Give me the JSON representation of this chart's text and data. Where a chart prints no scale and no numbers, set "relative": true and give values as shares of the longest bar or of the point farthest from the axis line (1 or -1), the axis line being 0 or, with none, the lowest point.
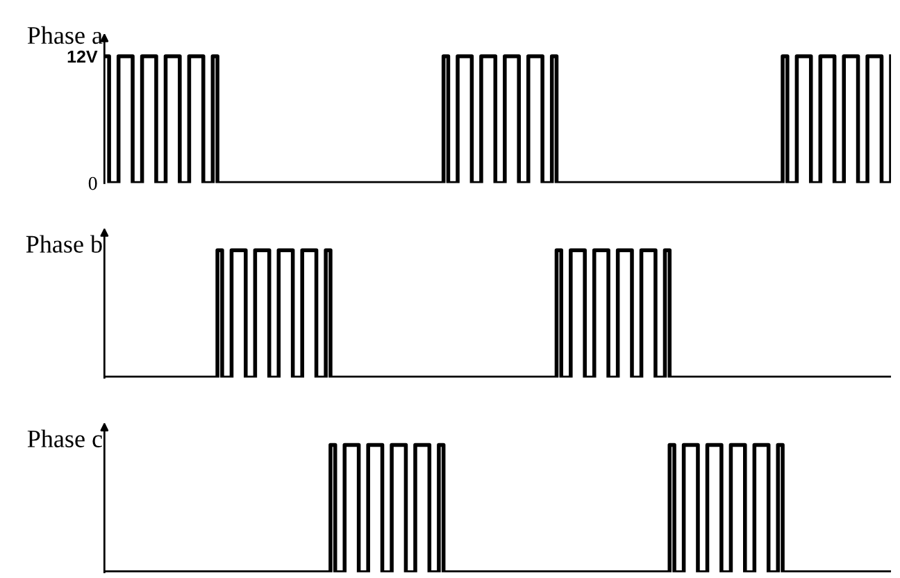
{
  "chart_data": [
    {
      "type": "step",
      "ylabel": "Phase a",
      "ylim": [
        0,
        13.5
      ],
      "yticks": [
        0,
        {
          "value": 12,
          "label": "12V"
        }
      ],
      "tick_labels": "y",
      "categories": [
        null,
        null,
        null,
        null,
        null,
        null,
        null,
        null,
        null,
        null,
        null,
        null,
        null,
        null,
        null,
        null,
        null,
        null,
        null,
        null,
        null,
        null,
        null,
        null,
        null,
        null,
        null,
        null,
        null,
        null,
        null,
        null,
        null,
        null,
        null,
        null,
        null,
        null,
        null,
        null,
        null,
        null,
        null,
        null,
        null,
        null,
        null,
        null,
        null,
        null,
        null,
        null,
        null,
        null,
        null,
        null,
        null,
        null,
        null,
        null,
        null,
        null,
        null,
        null,
        null,
        null,
        null,
        null,
        null,
        null,
        null,
        null,
        null,
        null,
        null,
        null,
        null,
        null,
        null,
        null,
        null,
        null,
        null,
        null,
        null,
        null,
        null,
        null,
        null,
        null,
        null,
        null,
        null,
        null,
        null,
        null,
        null,
        null,
        null,
        null,
        null,
        null,
        null,
        null,
        null,
        null,
        null,
        null,
        null,
        null,
        null,
        null,
        null,
        null,
        null,
        null,
        null,
        null,
        null,
        null,
        null,
        null,
        null,
        null,
        null,
        null,
        null,
        null,
        null,
        null,
        null,
        null,
        null,
        null,
        null,
        null,
        null,
        null,
        null,
        null,
        null,
        null,
        null,
        null,
        null,
        null,
        null,
        null,
        null,
        null,
        null,
        null,
        null,
        null,
        null,
        null,
        null,
        null,
        null,
        null,
        null,
        null,
        null,
        null,
        null,
        null,
        null,
        null
      ],
      "series": [
        {
          "color": "#000000",
          "values": [
            12,
            0,
            0,
            12,
            12,
            12,
            0,
            0,
            12,
            12,
            12,
            0,
            0,
            12,
            12,
            12,
            0,
            0,
            12,
            12,
            12,
            0,
            0,
            12,
            0,
            0,
            0,
            0,
            0,
            0,
            0,
            0,
            0,
            0,
            0,
            0,
            0,
            0,
            0,
            0,
            0,
            0,
            0,
            0,
            0,
            0,
            0,
            0,
            0,
            0,
            0,
            0,
            0,
            0,
            0,
            0,
            0,
            0,
            0,
            0,
            0,
            0,
            0,
            0,
            0,
            0,
            0,
            0,
            0,
            0,
            0,
            0,
            12,
            0,
            0,
            12,
            12,
            12,
            0,
            0,
            12,
            12,
            12,
            0,
            0,
            12,
            12,
            12,
            0,
            0,
            12,
            12,
            12,
            0,
            0,
            12,
            0,
            0,
            0,
            0,
            0,
            0,
            0,
            0,
            0,
            0,
            0,
            0,
            0,
            0,
            0,
            0,
            0,
            0,
            0,
            0,
            0,
            0,
            0,
            0,
            0,
            0,
            0,
            0,
            0,
            0,
            0,
            0,
            0,
            0,
            0,
            0,
            0,
            0,
            0,
            0,
            0,
            0,
            0,
            0,
            0,
            0,
            0,
            0,
            12,
            0,
            0,
            12,
            12,
            12,
            0,
            0,
            12,
            12,
            12,
            0,
            0,
            12,
            12,
            12,
            0,
            0,
            12,
            12,
            12,
            0,
            0,
            12
          ]
        }
      ]
    },
    {
      "type": "step",
      "ylabel": "Phase b",
      "relative": true,
      "tick_labels": false,
      "categories": [
        null,
        null,
        null,
        null,
        null,
        null,
        null,
        null,
        null,
        null,
        null,
        null,
        null,
        null,
        null,
        null,
        null,
        null,
        null,
        null,
        null,
        null,
        null,
        null,
        null,
        null,
        null,
        null,
        null,
        null,
        null,
        null,
        null,
        null,
        null,
        null,
        null,
        null,
        null,
        null,
        null,
        null,
        null,
        null,
        null,
        null,
        null,
        null,
        null,
        null,
        null,
        null,
        null,
        null,
        null,
        null,
        null,
        null,
        null,
        null,
        null,
        null,
        null,
        null,
        null,
        null,
        null,
        null,
        null,
        null,
        null,
        null,
        null,
        null,
        null,
        null,
        null,
        null,
        null,
        null,
        null,
        null,
        null,
        null,
        null,
        null,
        null,
        null,
        null,
        null,
        null,
        null,
        null,
        null,
        null,
        null,
        null,
        null,
        null,
        null,
        null,
        null,
        null,
        null,
        null,
        null,
        null,
        null,
        null,
        null,
        null,
        null,
        null,
        null,
        null,
        null,
        null,
        null,
        null,
        null,
        null,
        null,
        null,
        null,
        null,
        null,
        null,
        null,
        null,
        null,
        null,
        null,
        null,
        null,
        null,
        null,
        null,
        null,
        null,
        null,
        null,
        null,
        null,
        null,
        null,
        null,
        null,
        null,
        null,
        null,
        null,
        null,
        null,
        null,
        null,
        null,
        null,
        null,
        null,
        null,
        null,
        null,
        null,
        null,
        null,
        null,
        null,
        null
      ],
      "series": [
        {
          "color": "#000000",
          "values": [
            0,
            0,
            0,
            0,
            0,
            0,
            0,
            0,
            0,
            0,
            0,
            0,
            0,
            0,
            0,
            0,
            0,
            0,
            0,
            0,
            0,
            0,
            0,
            0,
            1,
            0,
            0,
            1,
            1,
            1,
            0,
            0,
            1,
            1,
            1,
            0,
            0,
            1,
            1,
            1,
            0,
            0,
            1,
            1,
            1,
            0,
            0,
            1,
            0,
            0,
            0,
            0,
            0,
            0,
            0,
            0,
            0,
            0,
            0,
            0,
            0,
            0,
            0,
            0,
            0,
            0,
            0,
            0,
            0,
            0,
            0,
            0,
            0,
            0,
            0,
            0,
            0,
            0,
            0,
            0,
            0,
            0,
            0,
            0,
            0,
            0,
            0,
            0,
            0,
            0,
            0,
            0,
            0,
            0,
            0,
            0,
            1,
            0,
            0,
            1,
            1,
            1,
            0,
            0,
            1,
            1,
            1,
            0,
            0,
            1,
            1,
            1,
            0,
            0,
            1,
            1,
            1,
            0,
            0,
            1,
            0,
            0,
            0,
            0,
            0,
            0,
            0,
            0,
            0,
            0,
            0,
            0,
            0,
            0,
            0,
            0,
            0,
            0,
            0,
            0,
            0,
            0,
            0,
            0,
            0,
            0,
            0,
            0,
            0,
            0,
            0,
            0,
            0,
            0,
            0,
            0,
            0,
            0,
            0,
            0,
            0,
            0,
            0,
            0,
            0,
            0,
            0,
            0
          ]
        }
      ]
    },
    {
      "type": "step",
      "ylabel": "Phase c",
      "relative": true,
      "tick_labels": false,
      "categories": [
        null,
        null,
        null,
        null,
        null,
        null,
        null,
        null,
        null,
        null,
        null,
        null,
        null,
        null,
        null,
        null,
        null,
        null,
        null,
        null,
        null,
        null,
        null,
        null,
        null,
        null,
        null,
        null,
        null,
        null,
        null,
        null,
        null,
        null,
        null,
        null,
        null,
        null,
        null,
        null,
        null,
        null,
        null,
        null,
        null,
        null,
        null,
        null,
        null,
        null,
        null,
        null,
        null,
        null,
        null,
        null,
        null,
        null,
        null,
        null,
        null,
        null,
        null,
        null,
        null,
        null,
        null,
        null,
        null,
        null,
        null,
        null,
        null,
        null,
        null,
        null,
        null,
        null,
        null,
        null,
        null,
        null,
        null,
        null,
        null,
        null,
        null,
        null,
        null,
        null,
        null,
        null,
        null,
        null,
        null,
        null,
        null,
        null,
        null,
        null,
        null,
        null,
        null,
        null,
        null,
        null,
        null,
        null,
        null,
        null,
        null,
        null,
        null,
        null,
        null,
        null,
        null,
        null,
        null,
        null,
        null,
        null,
        null,
        null,
        null,
        null,
        null,
        null,
        null,
        null,
        null,
        null,
        null,
        null,
        null,
        null,
        null,
        null,
        null,
        null,
        null,
        null,
        null,
        null,
        null,
        null,
        null,
        null,
        null,
        null,
        null,
        null,
        null,
        null,
        null,
        null,
        null,
        null,
        null,
        null,
        null,
        null,
        null,
        null,
        null,
        null,
        null,
        null
      ],
      "series": [
        {
          "color": "#000000",
          "values": [
            0,
            0,
            0,
            0,
            0,
            0,
            0,
            0,
            0,
            0,
            0,
            0,
            0,
            0,
            0,
            0,
            0,
            0,
            0,
            0,
            0,
            0,
            0,
            0,
            0,
            0,
            0,
            0,
            0,
            0,
            0,
            0,
            0,
            0,
            0,
            0,
            0,
            0,
            0,
            0,
            0,
            0,
            0,
            0,
            0,
            0,
            0,
            0,
            1,
            0,
            0,
            1,
            1,
            1,
            0,
            0,
            1,
            1,
            1,
            0,
            0,
            1,
            1,
            1,
            0,
            0,
            1,
            1,
            1,
            0,
            0,
            1,
            0,
            0,
            0,
            0,
            0,
            0,
            0,
            0,
            0,
            0,
            0,
            0,
            0,
            0,
            0,
            0,
            0,
            0,
            0,
            0,
            0,
            0,
            0,
            0,
            0,
            0,
            0,
            0,
            0,
            0,
            0,
            0,
            0,
            0,
            0,
            0,
            0,
            0,
            0,
            0,
            0,
            0,
            0,
            0,
            0,
            0,
            0,
            0,
            1,
            0,
            0,
            1,
            1,
            1,
            0,
            0,
            1,
            1,
            1,
            0,
            0,
            1,
            1,
            1,
            0,
            0,
            1,
            1,
            1,
            0,
            0,
            1,
            0,
            0,
            0,
            0,
            0,
            0,
            0,
            0,
            0,
            0,
            0,
            0,
            0,
            0,
            0,
            0,
            0,
            0,
            0,
            0,
            0,
            0,
            0,
            0
          ]
        }
      ]
    }
  ]
}
